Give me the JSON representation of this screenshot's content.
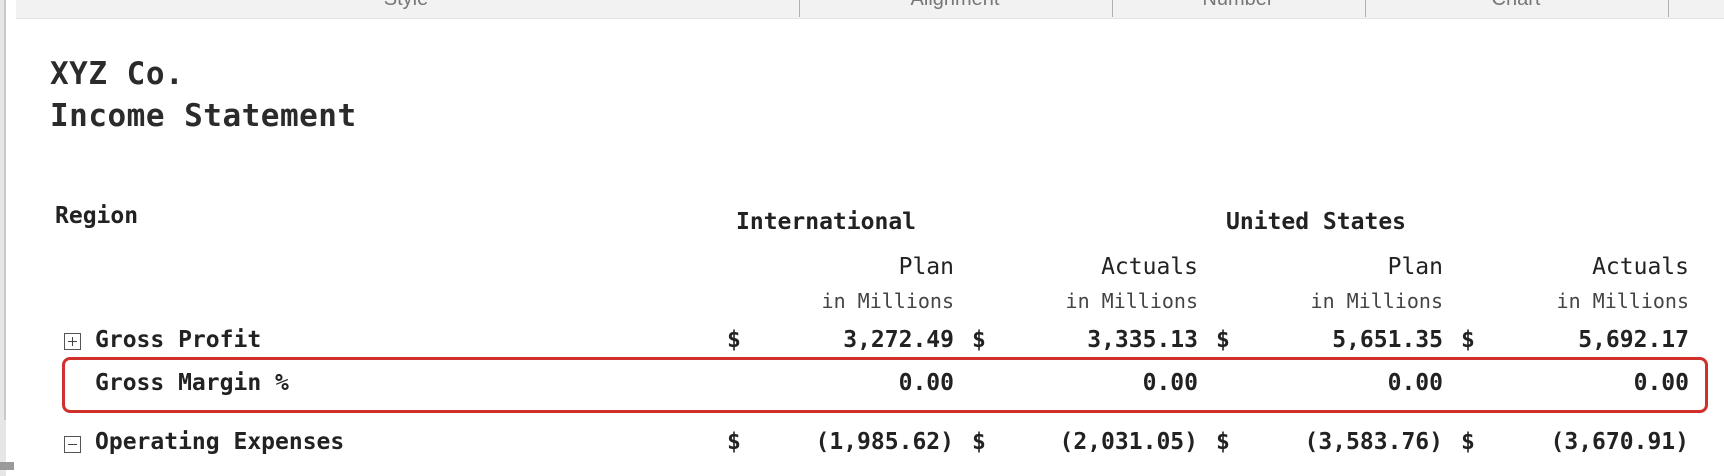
{
  "ribbon": {
    "groups": [
      "Style",
      "Alignment",
      "Number",
      "Chart"
    ]
  },
  "report": {
    "company": "XYZ Co.",
    "statement": "Income Statement"
  },
  "table": {
    "dimension_label": "Region",
    "regions": [
      "International",
      "United States"
    ],
    "measures": [
      {
        "name": "Plan",
        "unit": "in Millions"
      },
      {
        "name": "Actuals",
        "unit": "in Millions"
      },
      {
        "name": "Plan",
        "unit": "in Millions"
      },
      {
        "name": "Actuals",
        "unit": "in Millions"
      }
    ],
    "currency_symbol": "$",
    "rows": [
      {
        "label": "Gross Profit",
        "toggle": "expand",
        "values": [
          "3,272.49",
          "3,335.13",
          "5,651.35",
          "5,692.17"
        ],
        "currency": true
      },
      {
        "label": "Gross Margin %",
        "toggle": "none",
        "values": [
          "0.00",
          "0.00",
          "0.00",
          "0.00"
        ],
        "currency": false,
        "highlighted": true
      },
      {
        "label": "Operating Expenses",
        "toggle": "collapse",
        "values": [
          "(1,985.62)",
          "(2,031.05)",
          "(3,583.76)",
          "(3,670.91)"
        ],
        "currency": true
      }
    ]
  },
  "colors": {
    "highlight_border": "#d0312d",
    "ribbon_bg": "#f2f2f2"
  }
}
